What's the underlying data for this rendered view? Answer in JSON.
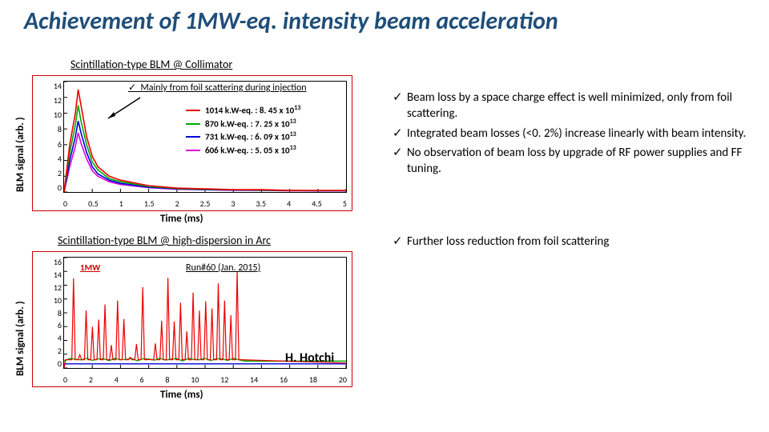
{
  "title": "Achievement of 1MW-eq. intensity beam acceleration",
  "title_color": "#1f4e79",
  "chart1": {
    "heading": "Scintillation-type BLM @ Collimator",
    "ylabel": "BLM signal (arb. )",
    "xlabel": "Time (ms)",
    "annotation": "Mainly from foil scattering during injection",
    "xlim": [
      0,
      5
    ],
    "xtick_step": 0.5,
    "ylim": [
      0,
      14
    ],
    "ytick_step": 2,
    "border_color": "#cc0000",
    "series": [
      {
        "label_prefix": "1014 k.W-eq. : 8. 45 x 10",
        "label_exp": "13",
        "color": "#ee0000",
        "x": [
          0,
          0.1,
          0.2,
          0.25,
          0.3,
          0.4,
          0.5,
          0.6,
          0.8,
          1.0,
          1.5,
          2.0,
          2.5,
          3.0,
          3.5,
          4.0,
          4.5,
          5.0
        ],
        "y": [
          0,
          6,
          10,
          13,
          11,
          7,
          4.5,
          3.2,
          2.0,
          1.5,
          0.8,
          0.5,
          0.4,
          0.3,
          0.3,
          0.2,
          0.2,
          0.2
        ]
      },
      {
        "label_prefix": " 870 k.W-eq. : 7. 25 x 10",
        "label_exp": "13",
        "color": "#00aa00",
        "x": [
          0,
          0.1,
          0.2,
          0.25,
          0.3,
          0.4,
          0.5,
          0.6,
          0.8,
          1.0,
          1.5,
          2.0,
          2.5,
          3.0,
          3.5,
          4.0,
          4.5,
          5.0
        ],
        "y": [
          0,
          5,
          8.5,
          11,
          9,
          6,
          3.8,
          2.8,
          1.7,
          1.3,
          0.7,
          0.45,
          0.35,
          0.28,
          0.25,
          0.2,
          0.18,
          0.18
        ]
      },
      {
        "label_prefix": " 731 k.W-eq. : 6. 09 x 10",
        "label_exp": "13",
        "color": "#0000dd",
        "x": [
          0,
          0.1,
          0.2,
          0.25,
          0.3,
          0.4,
          0.5,
          0.6,
          0.8,
          1.0,
          1.5,
          2.0,
          2.5,
          3.0,
          3.5,
          4.0,
          4.5,
          5.0
        ],
        "y": [
          0,
          4,
          7,
          9,
          7.5,
          5,
          3.2,
          2.3,
          1.5,
          1.1,
          0.6,
          0.4,
          0.3,
          0.25,
          0.22,
          0.18,
          0.16,
          0.16
        ]
      },
      {
        "label_prefix": " 606 k.W-eq. : 5. 05 x 10",
        "label_exp": "13",
        "color": "#dd00dd",
        "x": [
          0,
          0.1,
          0.2,
          0.25,
          0.3,
          0.4,
          0.5,
          0.6,
          0.8,
          1.0,
          1.5,
          2.0,
          2.5,
          3.0,
          3.5,
          4.0,
          4.5,
          5.0
        ],
        "y": [
          0,
          3.2,
          5.8,
          7.5,
          6.2,
          4.2,
          2.7,
          2.0,
          1.3,
          0.95,
          0.55,
          0.35,
          0.28,
          0.22,
          0.2,
          0.16,
          0.15,
          0.15
        ]
      }
    ]
  },
  "chart2": {
    "heading": "Scintillation-type BLM @ high-dispersion in Arc",
    "ylabel": "BLM signal (arb. )",
    "xlabel": "Time (ms)",
    "annot1": "1MW",
    "annot2": "Run#60 (Jan. 2015)",
    "xlim": [
      0,
      20
    ],
    "xtick_step": 2,
    "ylim": [
      0,
      16
    ],
    "ytick_step": 2,
    "border_color": "#cc0000",
    "series_colors": {
      "red": "#ee0000",
      "green": "#00aa00",
      "blue": "#0000dd"
    },
    "red_baseline": 1.2,
    "red_spikes_to": 14,
    "red_spike_count": 28,
    "green_y": 1.0,
    "blue_y": 0.6,
    "burst_end": 12.5
  },
  "author": "H. Hotchi",
  "bullets1": [
    "Beam loss by a space charge effect is well minimized, only from foil scattering.",
    " Integrated beam losses (<0. 2%) increase linearly with beam intensity.",
    "No observation of beam loss by upgrade of RF power supplies and FF tuning."
  ],
  "bullets2": [
    "Further loss reduction from foil scattering"
  ],
  "tick_glyph": "✓"
}
